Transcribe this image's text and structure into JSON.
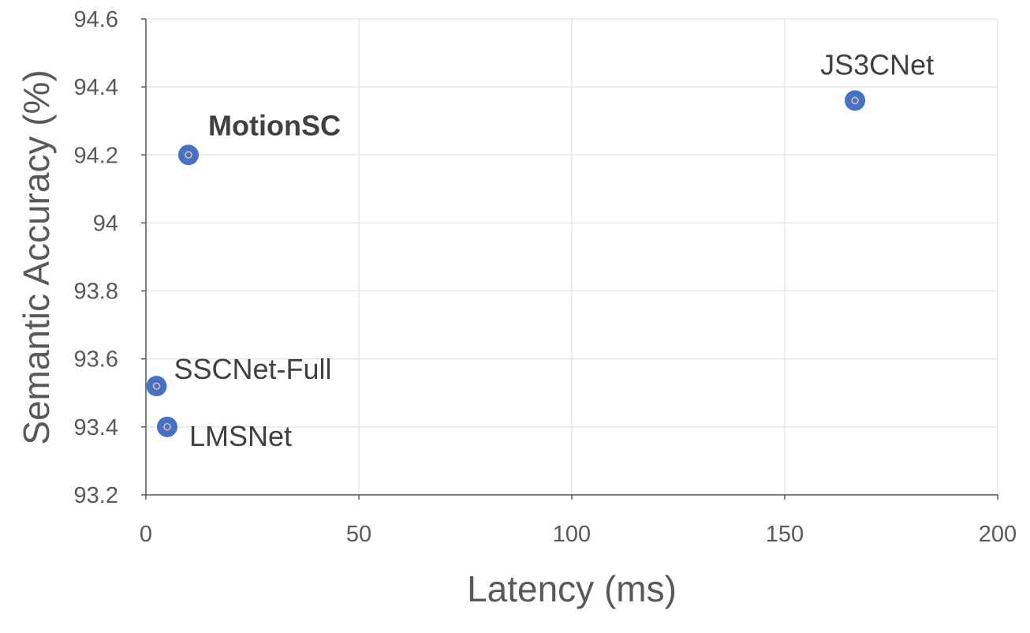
{
  "chart_data": {
    "type": "scatter",
    "title": "",
    "xlabel": "Latency (ms)",
    "ylabel": "Semantic Accuracy (%)",
    "xlim": [
      0,
      200
    ],
    "ylim": [
      93.2,
      94.6
    ],
    "xticks": [
      "0",
      "50",
      "100",
      "150",
      "200"
    ],
    "yticks": [
      "93.2",
      "93.4",
      "93.6",
      "93.8",
      "94",
      "94.2",
      "94.4",
      "94.6"
    ],
    "grid": true,
    "marker_color": "#4472C4",
    "points": [
      {
        "label": "MotionSC",
        "x": 10,
        "y": 94.2,
        "bold": true
      },
      {
        "label": "JS3CNet",
        "x": 166.5,
        "y": 94.36,
        "bold": false
      },
      {
        "label": "SSCNet-Full",
        "x": 2.5,
        "y": 93.52,
        "bold": false
      },
      {
        "label": "LMSNet",
        "x": 5,
        "y": 93.4,
        "bold": false
      }
    ]
  }
}
